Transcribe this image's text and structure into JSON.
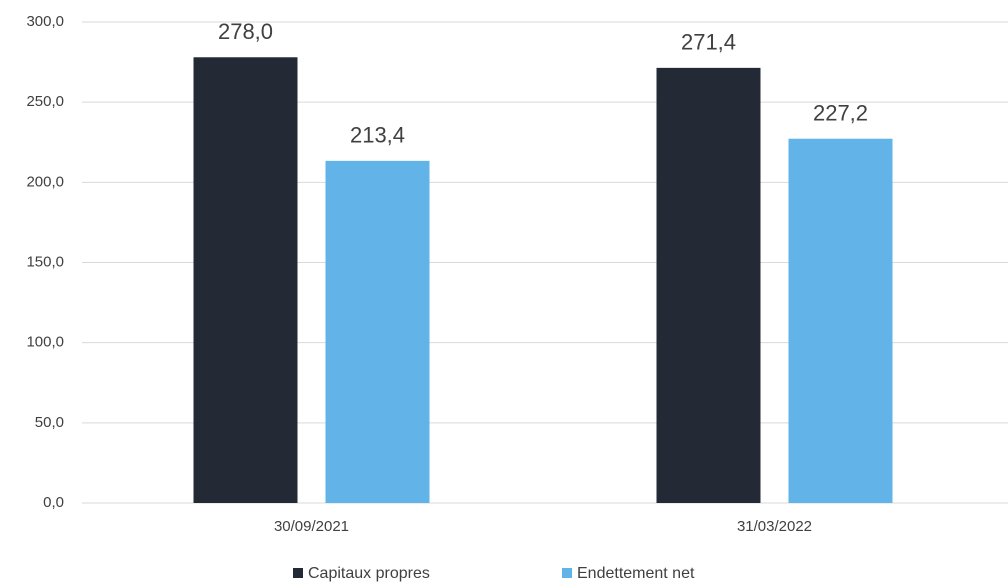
{
  "chart_data": {
    "type": "bar",
    "categories": [
      "30/09/2021",
      "31/03/2022"
    ],
    "series": [
      {
        "name": "Capitaux propres",
        "color": "#232a35",
        "values": [
          278.0,
          271.4
        ],
        "value_labels": [
          "278,0",
          "271,4"
        ]
      },
      {
        "name": "Endettement net",
        "color": "#61b3e8",
        "values": [
          213.4,
          227.2
        ],
        "value_labels": [
          "213,4",
          "227,2"
        ]
      }
    ],
    "ylim": [
      0,
      300
    ],
    "yticks": [
      {
        "value": 0,
        "label": "0,0"
      },
      {
        "value": 50,
        "label": "50,0"
      },
      {
        "value": 100,
        "label": "100,0"
      },
      {
        "value": 150,
        "label": "150,0"
      },
      {
        "value": 200,
        "label": "200,0"
      },
      {
        "value": 250,
        "label": "250,0"
      },
      {
        "value": 300,
        "label": "300,0"
      }
    ],
    "grid": true,
    "legend": "bottom"
  }
}
